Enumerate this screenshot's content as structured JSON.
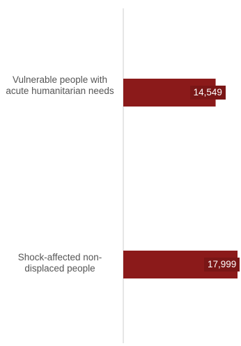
{
  "chart_data": {
    "type": "bar",
    "orientation": "horizontal",
    "categories": [
      "Vulnerable people with acute humanitarian needs",
      "Shock-affected non-displaced people"
    ],
    "values": [
      14549,
      17999
    ],
    "value_labels": [
      "14,549",
      "17,999"
    ],
    "title": "",
    "xlabel": "",
    "ylabel": "",
    "xlim": [
      0,
      17999
    ],
    "grid": false,
    "legend": "none",
    "colors": {
      "bar": "#8b1a1a",
      "label_box": "#7a1616",
      "axis": "#cccccc",
      "category_text": "#555555",
      "value_text": "#ffffff"
    }
  }
}
